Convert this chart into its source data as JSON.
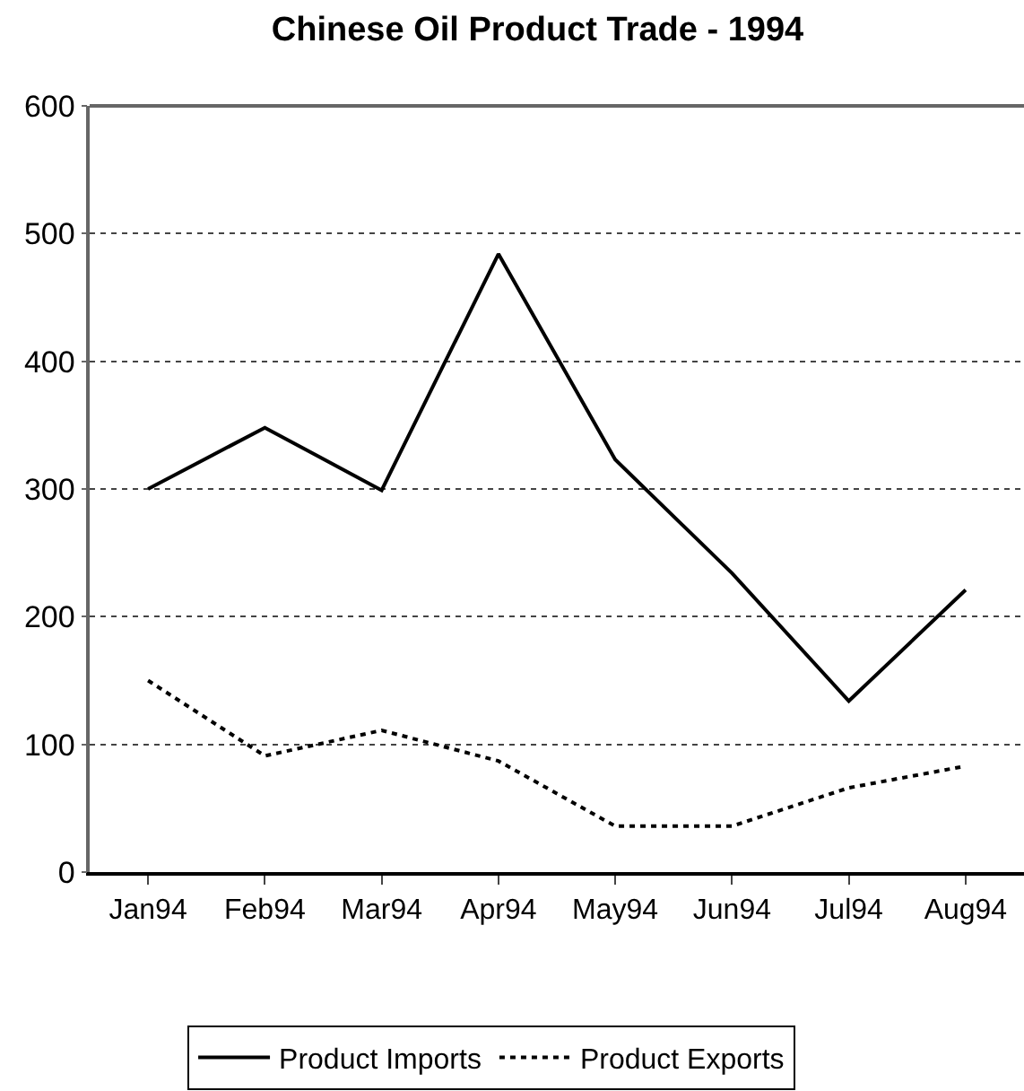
{
  "chart_data": {
    "type": "line",
    "title": "Chinese Oil Product Trade - 1994",
    "categories": [
      "Jan94",
      "Feb94",
      "Mar94",
      "Apr94",
      "May94",
      "Jun94",
      "Jul94",
      "Aug94"
    ],
    "series": [
      {
        "name": "Product Imports",
        "color": "#000000",
        "line_style": "solid",
        "values": [
          300,
          348,
          299,
          484,
          323,
          234,
          134,
          221
        ]
      },
      {
        "name": "Product Exports",
        "color": "#000000",
        "line_style": "dotted",
        "values": [
          150,
          91,
          111,
          87,
          36,
          36,
          66,
          83
        ]
      }
    ],
    "ylim": [
      0,
      600
    ],
    "yticks": [
      0,
      100,
      200,
      300,
      400,
      500,
      600
    ],
    "grid": "y",
    "legend": "bottom"
  }
}
